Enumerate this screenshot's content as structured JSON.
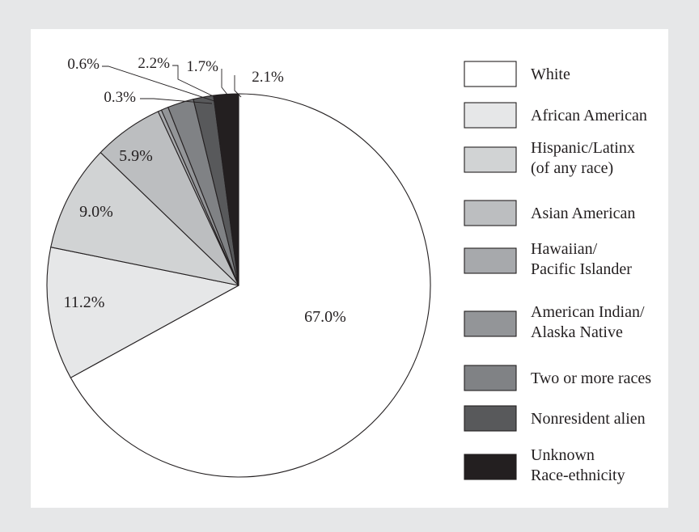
{
  "chart_data": {
    "type": "pie",
    "title": "",
    "start_angle": "12 o'clock, clockwise",
    "categories": [
      "White",
      "African American",
      "Hispanic/Latinx (of any race)",
      "Asian American",
      "Hawaiian/ Pacific Islander",
      "American Indian/ Alaska Native",
      "Two or more races",
      "Nonresident alien",
      "Unknown Race-ethnicity"
    ],
    "values": [
      67.0,
      11.2,
      9.0,
      5.9,
      0.3,
      0.6,
      2.2,
      1.7,
      2.1
    ],
    "value_labels": [
      "67.0%",
      "11.2%",
      "9.0%",
      "5.9%",
      "0.3%",
      "0.6%",
      "2.2%",
      "1.7%",
      "2.1%"
    ],
    "colors": [
      "#ffffff",
      "#e6e7e8",
      "#d1d3d4",
      "#bcbec0",
      "#a7a9ac",
      "#939598",
      "#808285",
      "#58595b",
      "#231f20"
    ],
    "legend": {
      "placement": "right",
      "items": [
        {
          "lines": [
            "White"
          ]
        },
        {
          "lines": [
            "African American"
          ]
        },
        {
          "lines": [
            "Hispanic/Latinx",
            "(of any race)"
          ]
        },
        {
          "lines": [
            "Asian American"
          ]
        },
        {
          "lines": [
            "Hawaiian/",
            "Pacific Islander"
          ]
        },
        {
          "lines": [
            "American Indian/",
            "Alaska Native"
          ]
        },
        {
          "lines": [
            "Two or more races"
          ]
        },
        {
          "lines": [
            "Nonresident alien"
          ]
        },
        {
          "lines": [
            "Unknown",
            "Race-ethnicity"
          ]
        }
      ]
    }
  }
}
